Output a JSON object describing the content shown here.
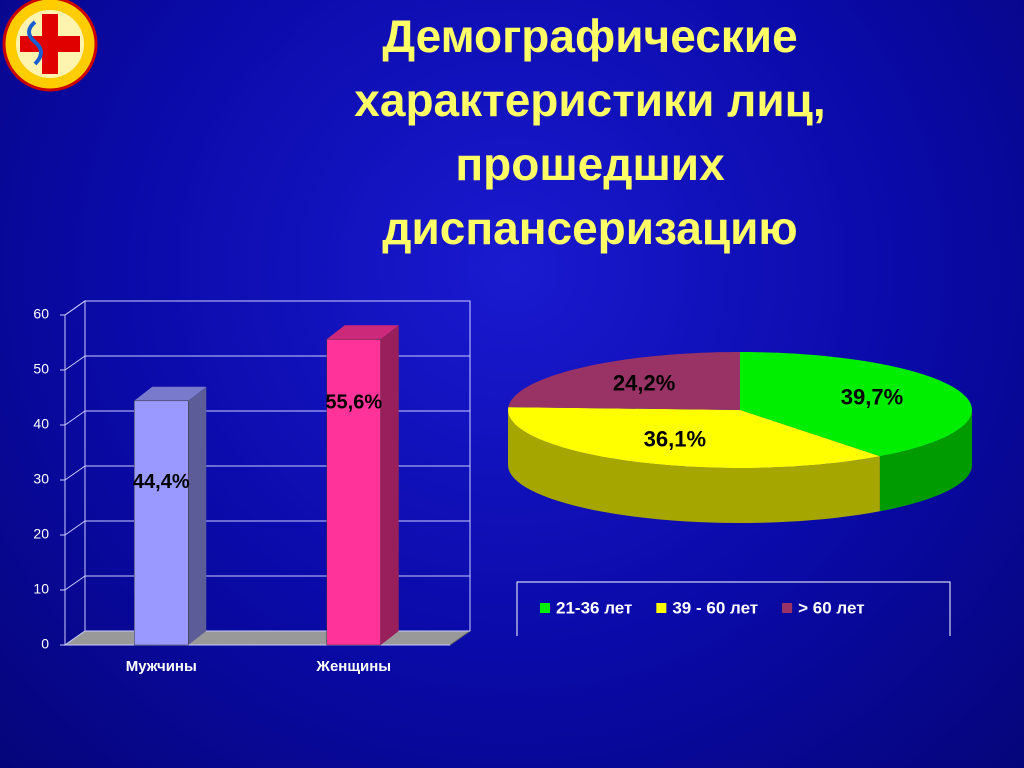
{
  "title": "Демографические характеристики лиц, прошедших диспансеризацию",
  "chart_data": [
    {
      "type": "bar",
      "categories": [
        "Мужчины",
        "Женщины"
      ],
      "values": [
        44.4,
        55.6
      ],
      "value_labels": [
        "44,4%",
        "55,6%"
      ],
      "colors": [
        "#9999ff",
        "#ff3399"
      ],
      "ylim": [
        0,
        60
      ],
      "yticks": [
        0,
        10,
        20,
        30,
        40,
        50,
        60
      ],
      "grid": true
    },
    {
      "type": "pie",
      "categories": [
        "21-36 лет",
        "39 - 60 лет",
        "> 60 лет"
      ],
      "values": [
        39.7,
        36.1,
        24.2
      ],
      "value_labels": [
        "39,7%",
        "36,1%",
        "24,2%"
      ],
      "colors": [
        "#00ee00",
        "#ffff00",
        "#993366"
      ],
      "legend": "bottom"
    }
  ]
}
